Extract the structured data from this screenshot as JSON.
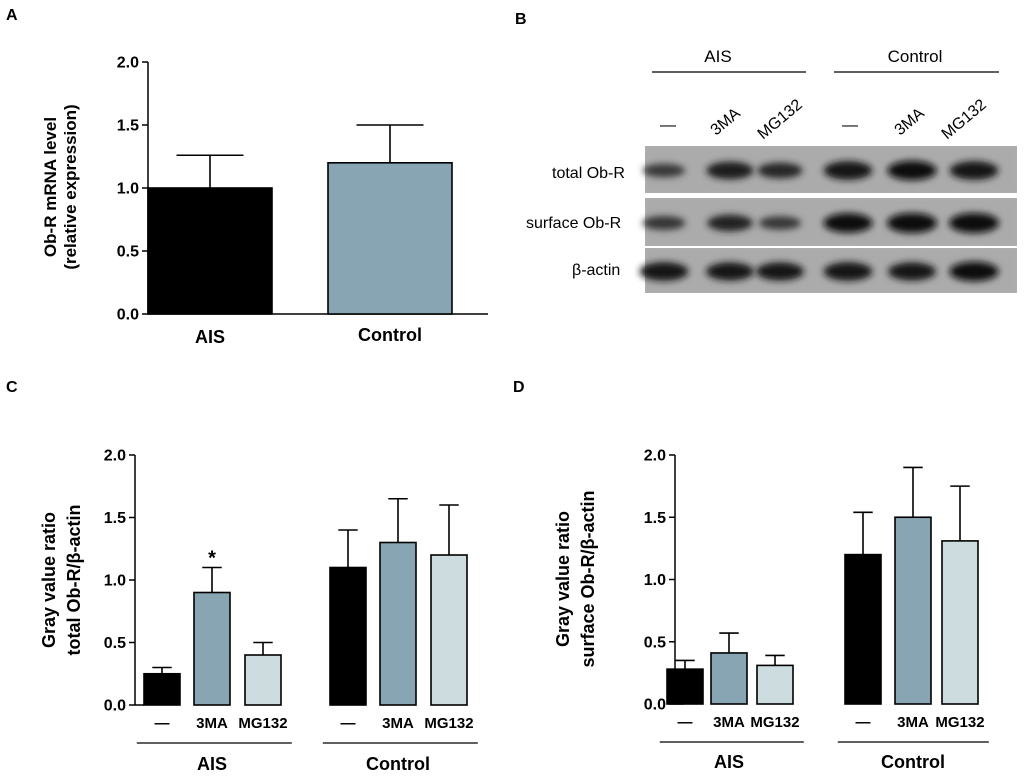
{
  "panels": {
    "A": "A",
    "B": "B",
    "C": "C",
    "D": "D"
  },
  "colors": {
    "black": "#000000",
    "blue_gray": "#88a5b3",
    "light": "#cddcdf"
  },
  "chart_data": [
    {
      "id": "A",
      "type": "bar",
      "categories": [
        "AIS",
        "Control"
      ],
      "values": [
        1.0,
        1.2
      ],
      "errors": [
        0.26,
        0.3
      ],
      "colors": [
        "#000000",
        "#88a5b3"
      ],
      "ylabel": [
        "Ob-R mRNA level",
        "(relative expression)"
      ],
      "ylim": [
        0,
        2.0
      ],
      "yticks": [
        "0.0",
        "0.5",
        "1.0",
        "1.5",
        "2.0"
      ],
      "grid": false
    },
    {
      "id": "C",
      "type": "bar",
      "groups": [
        "AIS",
        "Control"
      ],
      "categories": [
        "—",
        "3MA",
        "MG132"
      ],
      "series": [
        {
          "group": "AIS",
          "values": [
            0.25,
            0.9,
            0.4
          ],
          "errors": [
            0.05,
            0.2,
            0.1
          ]
        },
        {
          "group": "Control",
          "values": [
            1.1,
            1.3,
            1.2
          ],
          "errors": [
            0.3,
            0.35,
            0.4
          ]
        }
      ],
      "colors": [
        "#000000",
        "#88a5b3",
        "#cddcdf"
      ],
      "annotations": [
        {
          "group": "AIS",
          "index": 1,
          "text": "*"
        }
      ],
      "ylabel": [
        "Gray value ratio",
        "total Ob-R/β-actin"
      ],
      "ylim": [
        0,
        2.0
      ],
      "yticks": [
        "0.0",
        "0.5",
        "1.0",
        "1.5",
        "2.0"
      ],
      "grid": false
    },
    {
      "id": "D",
      "type": "bar",
      "groups": [
        "AIS",
        "Control"
      ],
      "categories": [
        "—",
        "3MA",
        "MG132"
      ],
      "series": [
        {
          "group": "AIS",
          "values": [
            0.28,
            0.41,
            0.31
          ],
          "errors": [
            0.07,
            0.16,
            0.08
          ]
        },
        {
          "group": "Control",
          "values": [
            1.2,
            1.5,
            1.31
          ],
          "errors": [
            0.34,
            0.4,
            0.44
          ]
        }
      ],
      "colors": [
        "#000000",
        "#88a5b3",
        "#cddcdf"
      ],
      "ylabel": [
        "Gray value ratio",
        "surface Ob-R/β-actin"
      ],
      "ylim": [
        0,
        2.0
      ],
      "yticks": [
        "0.0",
        "0.5",
        "1.0",
        "1.5",
        "2.0"
      ],
      "grid": false
    }
  ],
  "blot": {
    "groups": [
      "AIS",
      "Control"
    ],
    "lanes": [
      "—",
      "3MA",
      "MG132",
      "—",
      "3MA",
      "MG132"
    ],
    "rows": [
      {
        "label": "total Ob-R",
        "intensity": [
          0.45,
          0.8,
          0.65,
          0.9,
          0.95,
          0.9
        ]
      },
      {
        "label": "surface Ob-R",
        "intensity": [
          0.5,
          0.7,
          0.45,
          0.95,
          1.0,
          1.0
        ]
      },
      {
        "label": "β-actin",
        "intensity": [
          0.9,
          0.85,
          0.85,
          0.9,
          0.85,
          0.95
        ]
      }
    ]
  }
}
